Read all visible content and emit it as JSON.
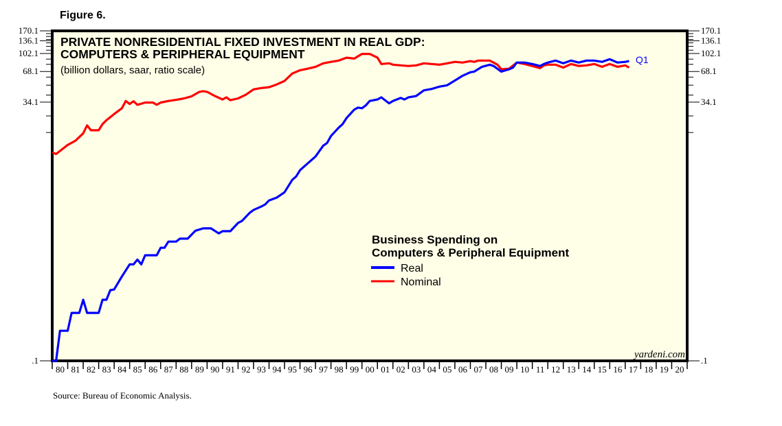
{
  "figure_label": "Figure 6.",
  "source": "Source: Bureau of Economic Analysis.",
  "chart_data": {
    "type": "line",
    "title": "PRIVATE NONRESIDENTIAL FIXED INVESTMENT IN REAL GDP:",
    "title_line2": "COMPUTERS & PERIPHERAL EQUIPMENT",
    "subtitle": "(billion dollars, saar, ratio scale)",
    "brand": "yardeni.com",
    "scale": "log",
    "ylim": [
      0.1,
      170.1
    ],
    "xlim": [
      1980,
      2021
    ],
    "y_ticks": [
      {
        "value": 170.1,
        "label": "170.1"
      },
      {
        "value": 136.1,
        "label": "136.1"
      },
      {
        "value": 102.1,
        "label": "102.1"
      },
      {
        "value": 68.1,
        "label": "68.1"
      },
      {
        "value": 34.1,
        "label": "34.1"
      },
      {
        "value": 0.1,
        "label": ".1"
      }
    ],
    "y_minor_ticks": [
      160,
      150,
      140,
      130,
      120,
      110,
      90,
      80,
      60,
      50,
      40,
      25,
      17.2
    ],
    "x_tick_labels": [
      "80",
      "81",
      "82",
      "83",
      "84",
      "85",
      "86",
      "87",
      "88",
      "89",
      "90",
      "91",
      "92",
      "93",
      "94",
      "95",
      "96",
      "97",
      "98",
      "99",
      "00",
      "01",
      "02",
      "03",
      "04",
      "05",
      "06",
      "07",
      "08",
      "09",
      "10",
      "11",
      "12",
      "13",
      "14",
      "15",
      "16",
      "17",
      "18",
      "19",
      "20"
    ],
    "legend": {
      "title_line1": "Business Spending on",
      "title_line2": "Computers & Peripheral Equipment",
      "position": "center-right"
    },
    "end_label": "Q1",
    "series": [
      {
        "name": "Real",
        "color": "#0000ff",
        "x": [
          1980.0,
          1980.25,
          1980.5,
          1981.0,
          1981.25,
          1981.75,
          1982.0,
          1982.25,
          1983.0,
          1983.25,
          1983.5,
          1983.75,
          1984.0,
          1984.5,
          1985.0,
          1985.25,
          1985.5,
          1985.75,
          1986.0,
          1986.75,
          1987.0,
          1987.25,
          1987.5,
          1988.0,
          1988.25,
          1988.75,
          1989.0,
          1989.25,
          1989.75,
          1990.25,
          1990.75,
          1991.0,
          1991.5,
          1992.0,
          1992.25,
          1992.75,
          1993.0,
          1993.5,
          1993.75,
          1994.0,
          1994.5,
          1995.0,
          1995.5,
          1995.75,
          1996.0,
          1996.5,
          1997.0,
          1997.5,
          1997.75,
          1998.0,
          1998.5,
          1998.75,
          1999.0,
          1999.5,
          1999.75,
          2000.0,
          2000.25,
          2000.5,
          2001.0,
          2001.25,
          2001.75,
          2002.0,
          2002.5,
          2002.75,
          2003.0,
          2003.5,
          2004.0,
          2004.5,
          2005.0,
          2005.5,
          2006.0,
          2006.5,
          2007.0,
          2007.25,
          2007.75,
          2008.25,
          2008.5,
          2009.0,
          2009.5,
          2009.75,
          2010.0,
          2010.5,
          2011.0,
          2011.5,
          2011.75,
          2012.0,
          2012.5,
          2013.0,
          2013.5,
          2014.0,
          2014.5,
          2015.0,
          2015.5,
          2016.0,
          2016.5,
          2017.0,
          2017.25
        ],
        "values": [
          0.1,
          0.1,
          0.197,
          0.197,
          0.295,
          0.295,
          0.396,
          0.295,
          0.295,
          0.396,
          0.396,
          0.492,
          0.5,
          0.67,
          0.88,
          0.88,
          0.98,
          0.88,
          1.08,
          1.08,
          1.28,
          1.28,
          1.47,
          1.47,
          1.57,
          1.57,
          1.72,
          1.88,
          1.98,
          1.98,
          1.77,
          1.86,
          1.86,
          2.24,
          2.34,
          2.81,
          3.0,
          3.24,
          3.4,
          3.72,
          3.97,
          4.47,
          5.91,
          6.39,
          7.36,
          8.58,
          10.0,
          12.8,
          13.6,
          15.9,
          19.2,
          20.8,
          23.8,
          28.8,
          30.2,
          29.7,
          31.7,
          35.0,
          36.2,
          38.0,
          33.2,
          35.0,
          37.5,
          36.2,
          38.0,
          39.2,
          44.5,
          45.9,
          48.4,
          49.9,
          55.5,
          61.9,
          66.9,
          67.9,
          75.6,
          79.4,
          77.0,
          67.9,
          71.5,
          74.4,
          83.2,
          83.2,
          80.6,
          77.0,
          80.6,
          83.2,
          87.1,
          81.9,
          87.1,
          83.2,
          87.1,
          87.1,
          84.5,
          89.8,
          83.2,
          84.5,
          86.0
        ]
      },
      {
        "name": "Nominal",
        "color": "#ff0000",
        "x": [
          1980.0,
          1980.25,
          1981.0,
          1981.5,
          1982.0,
          1982.25,
          1982.5,
          1983.0,
          1983.25,
          1983.5,
          1984.0,
          1984.5,
          1984.75,
          1985.0,
          1985.25,
          1985.5,
          1986.0,
          1986.5,
          1986.75,
          1987.0,
          1987.5,
          1988.0,
          1988.5,
          1989.0,
          1989.5,
          1989.75,
          1990.0,
          1990.5,
          1991.0,
          1991.25,
          1991.5,
          1992.0,
          1992.5,
          1993.0,
          1993.5,
          1994.0,
          1994.5,
          1995.0,
          1995.5,
          1996.0,
          1996.5,
          1997.0,
          1997.5,
          1998.0,
          1998.5,
          1999.0,
          1999.5,
          2000.0,
          2000.5,
          2001.0,
          2001.25,
          2001.75,
          2002.0,
          2002.5,
          2003.0,
          2003.5,
          2004.0,
          2004.5,
          2005.0,
          2005.5,
          2006.0,
          2006.5,
          2007.0,
          2007.25,
          2007.5,
          2008.25,
          2008.75,
          2009.0,
          2009.5,
          2010.0,
          2010.5,
          2011.0,
          2011.5,
          2011.75,
          2012.0,
          2012.5,
          2013.0,
          2013.5,
          2014.0,
          2014.5,
          2015.0,
          2015.5,
          2016.0,
          2016.5,
          2017.0,
          2017.25
        ],
        "values": [
          10.98,
          10.6,
          13.0,
          14.3,
          16.9,
          20.2,
          18.1,
          18.1,
          20.8,
          22.7,
          26.1,
          29.7,
          35.0,
          32.7,
          34.8,
          32.1,
          33.8,
          33.8,
          32.1,
          33.8,
          35.0,
          35.9,
          37.1,
          38.9,
          43.0,
          43.7,
          43.0,
          39.2,
          36.2,
          38.0,
          35.6,
          37.1,
          40.3,
          45.5,
          46.9,
          47.8,
          50.8,
          55.0,
          65.0,
          70.0,
          72.6,
          75.6,
          81.9,
          84.5,
          87.1,
          92.9,
          91.1,
          101.2,
          101.2,
          92.9,
          80.6,
          81.9,
          79.4,
          78.1,
          77.0,
          78.1,
          81.9,
          80.6,
          79.4,
          81.9,
          84.5,
          83.2,
          86.0,
          84.5,
          87.1,
          87.1,
          79.4,
          71.5,
          72.6,
          83.2,
          80.6,
          77.0,
          73.4,
          78.1,
          79.4,
          79.4,
          74.4,
          80.6,
          77.0,
          78.1,
          80.6,
          75.6,
          80.6,
          75.6,
          78.1,
          74.4
        ]
      }
    ]
  }
}
